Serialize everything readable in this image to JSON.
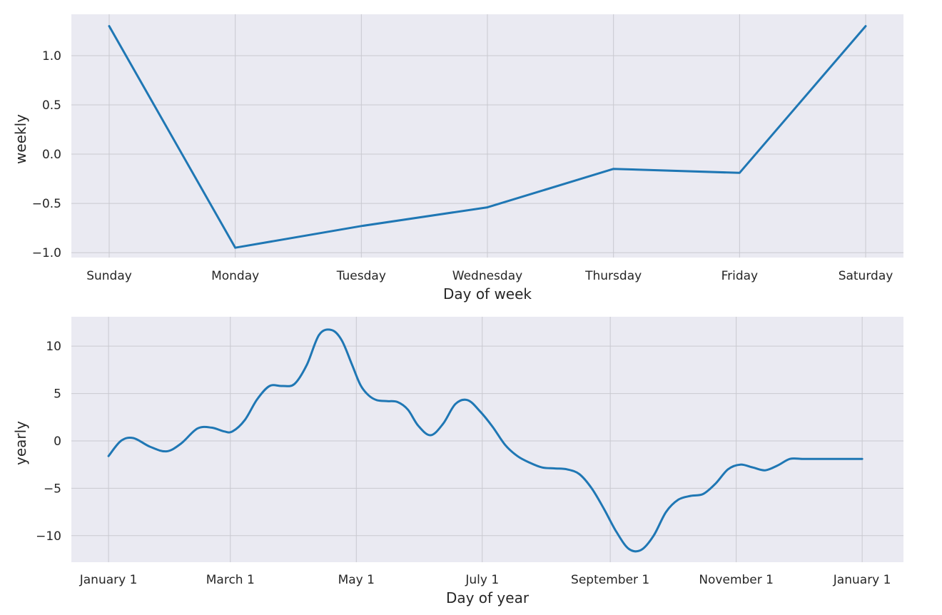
{
  "chart_data": [
    {
      "type": "line",
      "xlabel": "Day of week",
      "ylabel": "weekly",
      "categories": [
        "Sunday",
        "Monday",
        "Tuesday",
        "Wednesday",
        "Thursday",
        "Friday",
        "Saturday"
      ],
      "values": [
        1.3,
        -0.95,
        -0.73,
        -0.54,
        -0.15,
        -0.19,
        1.3
      ],
      "ylim": [
        -1.05,
        1.42
      ],
      "yticks": [
        1.0,
        0.5,
        0.0,
        -0.5,
        -1.0
      ],
      "ytick_labels": [
        "1.0",
        "0.5",
        "0.0",
        "−0.5",
        "−1.0"
      ],
      "grid": true,
      "color": "#1f77b4"
    },
    {
      "type": "line",
      "xlabel": "Day of year",
      "ylabel": "yearly",
      "xticks": [
        0,
        59,
        120,
        181,
        243,
        304,
        365
      ],
      "xtick_labels": [
        "January 1",
        "March 1",
        "May 1",
        "July 1",
        "September 1",
        "November 1",
        "January 1"
      ],
      "xlim": [
        -18,
        385
      ],
      "x": [
        0,
        6,
        12,
        20,
        28,
        35,
        43,
        50,
        56,
        60,
        66,
        72,
        78,
        84,
        90,
        96,
        102,
        108,
        113,
        118,
        122,
        126,
        130,
        135,
        140,
        145,
        150,
        156,
        162,
        168,
        174,
        180,
        186,
        192,
        198,
        204,
        210,
        216,
        222,
        228,
        234,
        240,
        246,
        252,
        258,
        264,
        270,
        276,
        282,
        288,
        294,
        300,
        306,
        312,
        318,
        324,
        330,
        336,
        342,
        348,
        354,
        360,
        365
      ],
      "values": [
        -1.6,
        0.0,
        0.3,
        -0.6,
        -1.1,
        -0.3,
        1.3,
        1.4,
        1.0,
        1.0,
        2.2,
        4.4,
        5.8,
        5.8,
        6.0,
        8.0,
        11.2,
        11.7,
        10.6,
        8.0,
        5.9,
        4.8,
        4.3,
        4.2,
        4.1,
        3.3,
        1.6,
        0.6,
        1.8,
        3.9,
        4.3,
        3.1,
        1.5,
        -0.4,
        -1.6,
        -2.3,
        -2.8,
        -2.9,
        -3.0,
        -3.5,
        -5.0,
        -7.2,
        -9.6,
        -11.4,
        -11.5,
        -10.0,
        -7.5,
        -6.2,
        -5.8,
        -5.6,
        -4.5,
        -3.0,
        -2.5,
        -2.8,
        -3.1,
        -2.6,
        -1.9,
        -1.9,
        -1.9,
        -1.9,
        -1.9,
        -1.9,
        -1.9
      ],
      "ylim": [
        -12.8,
        13.1
      ],
      "yticks": [
        10,
        5,
        0,
        -5,
        -10
      ],
      "ytick_labels": [
        "10",
        "5",
        "0",
        "−5",
        "−10"
      ],
      "grid": true,
      "color": "#1f77b4"
    }
  ]
}
